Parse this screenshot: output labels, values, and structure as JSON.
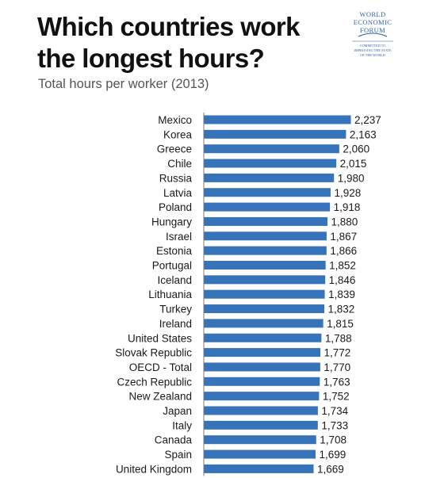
{
  "header": {
    "title_line1": "Which countries work",
    "title_line2": "the longest hours?",
    "subtitle": "Total hours per worker (2013)"
  },
  "logo": {
    "line1": "WORLD",
    "line2": "ECONOMIC",
    "line3": "FORUM",
    "tagline1": "COMMITTED TO",
    "tagline2": "IMPROVING THE STATE",
    "tagline3": "OF THE WORLD",
    "color": "#2b5fa3"
  },
  "chart_data": {
    "type": "bar",
    "orientation": "horizontal",
    "title": "Which countries work the longest hours?",
    "subtitle": "Total hours per worker (2013)",
    "xlabel": "",
    "ylabel": "",
    "xlim": [
      0,
      2237
    ],
    "bar_color": "#3673b9",
    "grid": false,
    "categories": [
      "Mexico",
      "Korea",
      "Greece",
      "Chile",
      "Russia",
      "Latvia",
      "Poland",
      "Hungary",
      "Israel",
      "Estonia",
      "Portugal",
      "Iceland",
      "Lithuania",
      "Turkey",
      "Ireland",
      "United States",
      "Slovak Republic",
      "OECD - Total",
      "Czech Republic",
      "New Zealand",
      "Japan",
      "Italy",
      "Canada",
      "Spain",
      "United Kingdom"
    ],
    "values": [
      2237,
      2163,
      2060,
      2015,
      1980,
      1928,
      1918,
      1880,
      1867,
      1866,
      1852,
      1846,
      1839,
      1832,
      1815,
      1788,
      1772,
      1770,
      1763,
      1752,
      1734,
      1733,
      1708,
      1699,
      1669
    ],
    "value_labels": [
      "2,237",
      "2,163",
      "2,060",
      "2,015",
      "1,980",
      "1,928",
      "1,918",
      "1,880",
      "1,867",
      "1,866",
      "1,852",
      "1,846",
      "1,839",
      "1,832",
      "1,815",
      "1,788",
      "1,772",
      "1,770",
      "1,763",
      "1,752",
      "1,734",
      "1,733",
      "1,708",
      "1,699",
      "1,669"
    ]
  }
}
